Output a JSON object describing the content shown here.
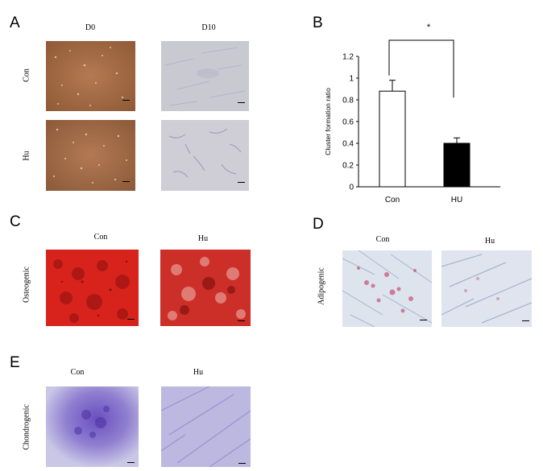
{
  "panels": {
    "A": {
      "letter": "A",
      "cols": [
        "D0",
        "D10"
      ],
      "rows": [
        "Con",
        "Hu"
      ]
    },
    "B": {
      "letter": "B",
      "significance": "*"
    },
    "C": {
      "letter": "C",
      "cols": [
        "Con",
        "Hu"
      ],
      "row": "Osteogenic"
    },
    "D": {
      "letter": "D",
      "cols": [
        "Con",
        "Hu"
      ],
      "row": "Adipogenic"
    },
    "E": {
      "letter": "E",
      "cols": [
        "Con",
        "Hu"
      ],
      "row": "Chondrogenic"
    }
  },
  "chart_data": {
    "type": "bar",
    "categories": [
      "Con",
      "HU"
    ],
    "values": [
      0.88,
      0.4
    ],
    "errors": [
      0.1,
      0.05
    ],
    "bar_colors": [
      "#ffffff",
      "#000000"
    ],
    "ylabel": "Cluster formation ratio",
    "ylim": [
      0,
      1.2
    ],
    "yticks": [
      "0",
      "0.2",
      "0.4",
      "0.6",
      "0.8",
      "1",
      "1.2"
    ],
    "significance": "*"
  }
}
